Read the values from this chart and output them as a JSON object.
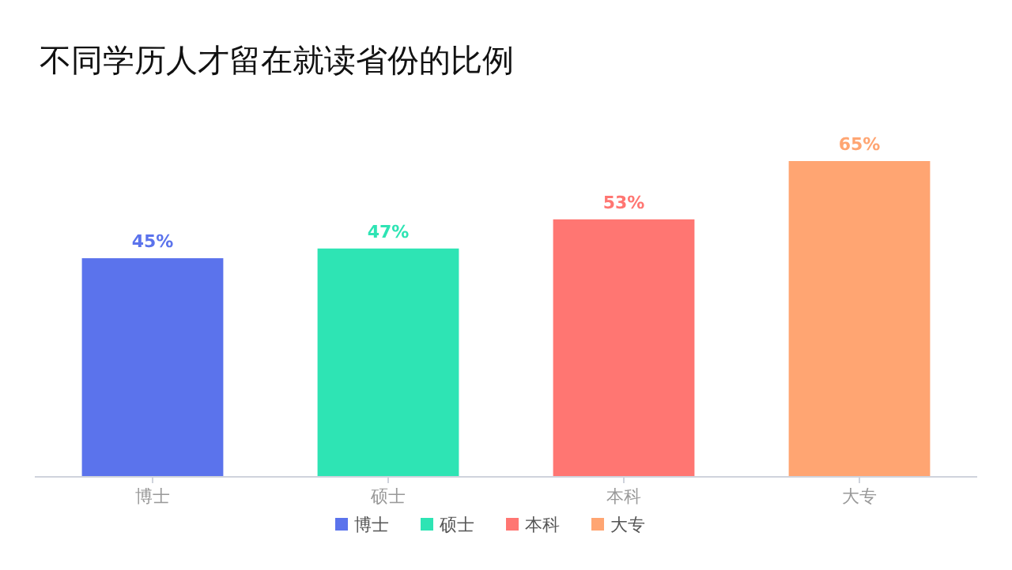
{
  "chart_data": {
    "type": "bar",
    "title": "不同学历人才留在就读省份的比例",
    "categories": [
      "博士",
      "硕士",
      "本科",
      "大专"
    ],
    "series": [
      {
        "name": "博士",
        "color": "#5b73ec",
        "values": [
          45,
          null,
          null,
          null
        ],
        "value_labels": [
          "45%",
          null,
          null,
          null
        ]
      },
      {
        "name": "硕士",
        "color": "#2ee4b4",
        "values": [
          null,
          47,
          null,
          null
        ],
        "value_labels": [
          null,
          "47%",
          null,
          null
        ]
      },
      {
        "name": "本科",
        "color": "#ff7672",
        "values": [
          null,
          null,
          53,
          null
        ],
        "value_labels": [
          null,
          null,
          "53%",
          null
        ]
      },
      {
        "name": "大专",
        "color": "#ffa572",
        "values": [
          null,
          null,
          null,
          65
        ],
        "value_labels": [
          null,
          null,
          null,
          "65%"
        ]
      }
    ],
    "legend": "bottom"
  }
}
